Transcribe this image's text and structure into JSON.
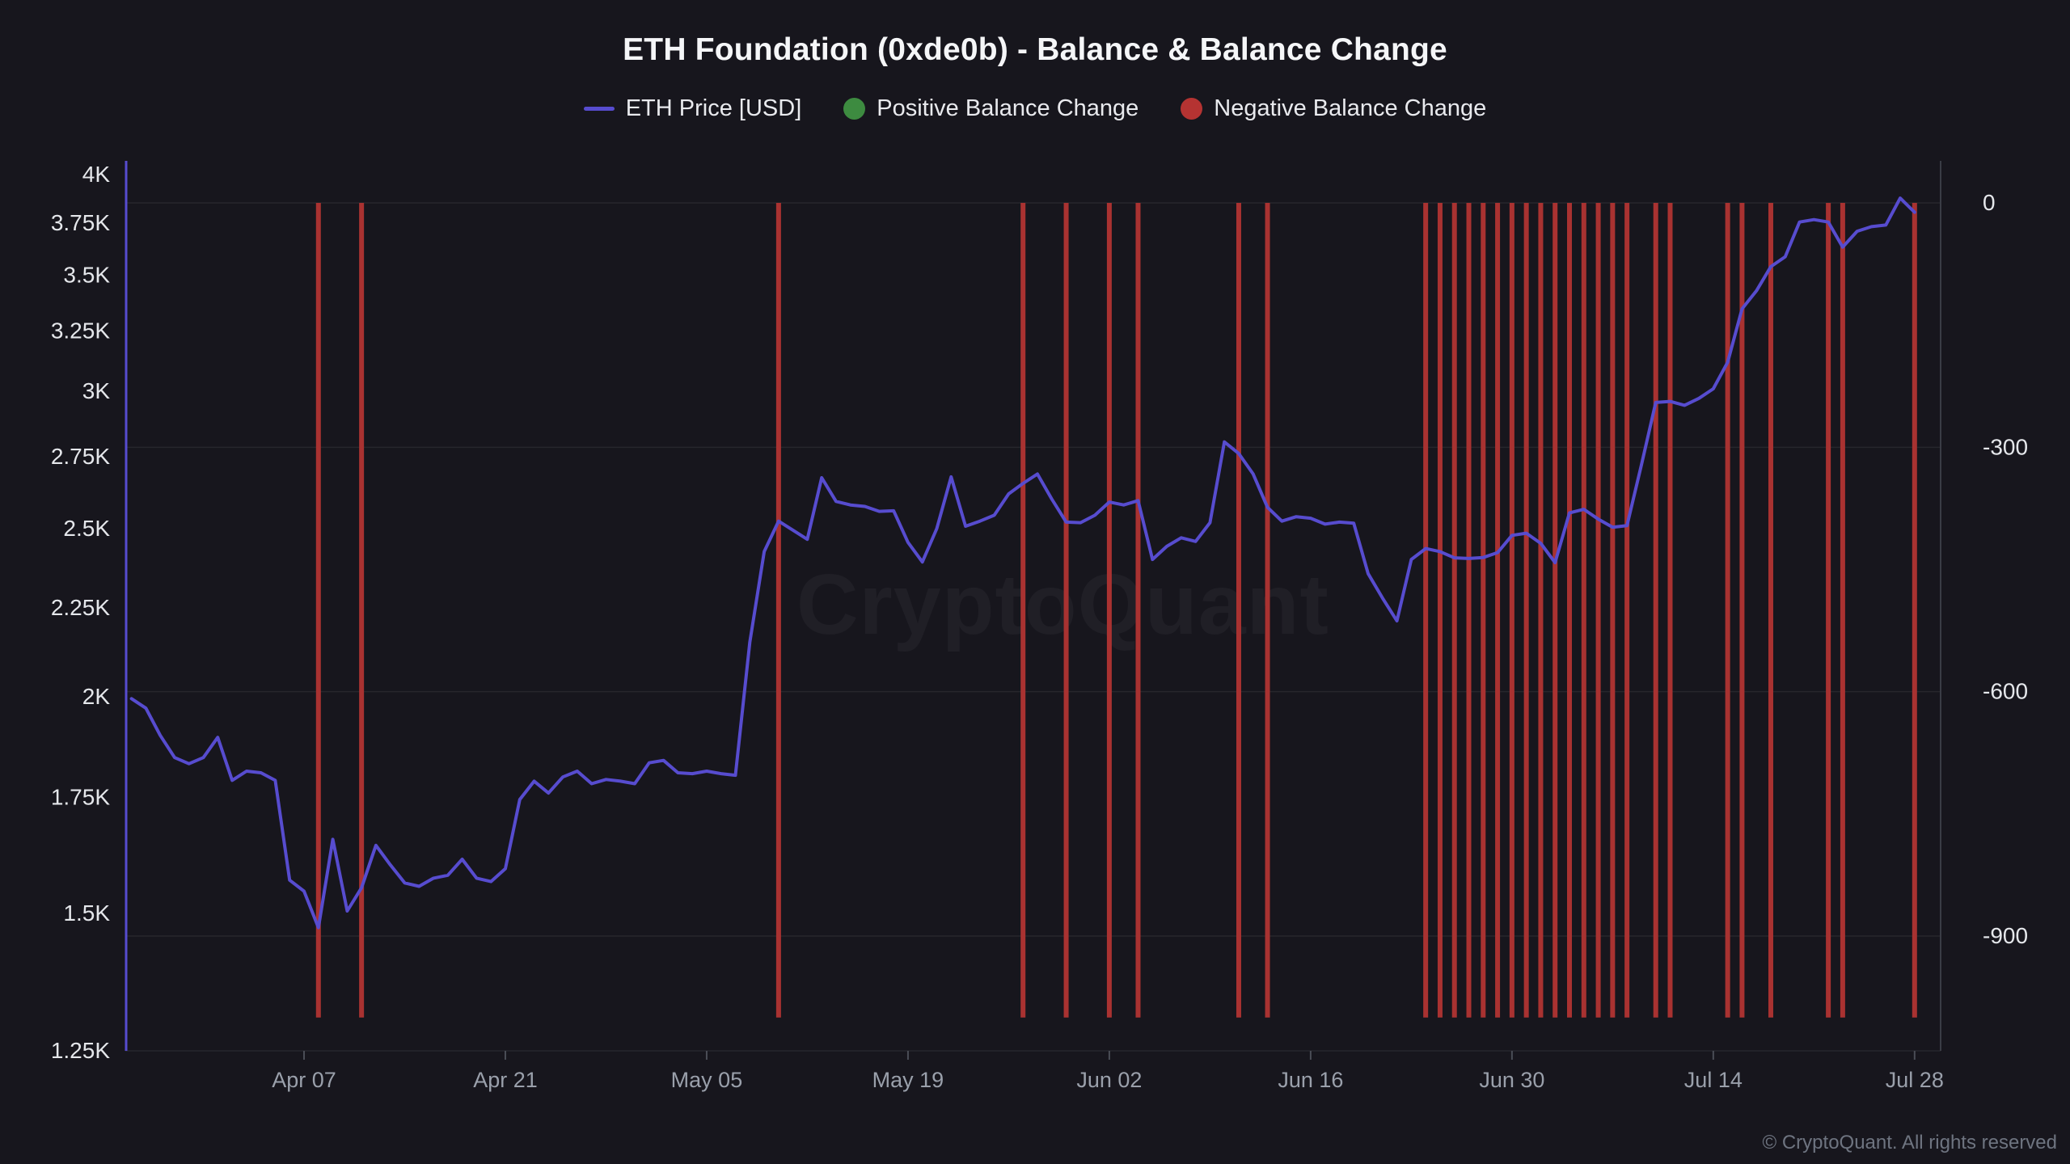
{
  "header": {
    "title": "ETH Foundation (0xde0b) - Balance & Balance Change"
  },
  "legend": {
    "items": [
      {
        "label": "ETH Price [USD]",
        "marker": "line",
        "color": "#574ccf"
      },
      {
        "label": "Positive Balance Change",
        "marker": "dot",
        "color": "#3d8b40"
      },
      {
        "label": "Negative Balance Change",
        "marker": "dot",
        "color": "#b53332"
      }
    ]
  },
  "watermark": "CryptoQuant",
  "attribution": "© CryptoQuant. All rights reserved",
  "colors": {
    "background": "#17161d",
    "price_line": "#574ccf",
    "negative_bar": "#a93231",
    "gridline": "rgba(255,255,255,0.07)",
    "left_axis_line": "#574ccf",
    "right_axis_line": "#3a3c45",
    "y_label": "#e5e7eb",
    "x_label": "#9aa0ab",
    "tick_mark": "#4a4d56"
  },
  "chart_data": {
    "type": "mixed",
    "title": "ETH Foundation (0xde0b) - Balance & Balance Change",
    "grid": "horizontal",
    "x_axis": {
      "ticks": [
        "Apr 07",
        "Apr 21",
        "May 05",
        "May 19",
        "Jun 02",
        "Jun 16",
        "Jun 30",
        "Jul 14",
        "Jul 28"
      ],
      "range": [
        "Mar 26",
        "Jul 28"
      ]
    },
    "left_axis": {
      "scale": "log",
      "title": "ETH Price [USD]",
      "ticks": [
        "4K",
        "3.75K",
        "3.5K",
        "3.25K",
        "3K",
        "2.75K",
        "2.5K",
        "2.25K",
        "2K",
        "1.75K",
        "1.5K",
        "1.25K"
      ],
      "tick_values": [
        4000,
        3750,
        3500,
        3250,
        3000,
        2750,
        2500,
        2250,
        2000,
        1750,
        1500,
        1250
      ],
      "range": [
        1250,
        4000
      ]
    },
    "right_axis": {
      "scale": "linear",
      "title": "Balance Change",
      "ticks": [
        "0",
        "-300",
        "-600",
        "-900"
      ],
      "tick_values": [
        0,
        -300,
        -600,
        -900
      ],
      "range": [
        -1000,
        0
      ]
    },
    "dates": [
      "Mar 26",
      "Mar 27",
      "Mar 28",
      "Mar 29",
      "Mar 30",
      "Mar 31",
      "Apr 01",
      "Apr 02",
      "Apr 03",
      "Apr 04",
      "Apr 05",
      "Apr 06",
      "Apr 07",
      "Apr 08",
      "Apr 09",
      "Apr 10",
      "Apr 11",
      "Apr 12",
      "Apr 13",
      "Apr 14",
      "Apr 15",
      "Apr 16",
      "Apr 17",
      "Apr 18",
      "Apr 19",
      "Apr 20",
      "Apr 21",
      "Apr 22",
      "Apr 23",
      "Apr 24",
      "Apr 25",
      "Apr 26",
      "Apr 27",
      "Apr 28",
      "Apr 29",
      "Apr 30",
      "May 01",
      "May 02",
      "May 03",
      "May 04",
      "May 05",
      "May 06",
      "May 07",
      "May 08",
      "May 09",
      "May 10",
      "May 11",
      "May 12",
      "May 13",
      "May 14",
      "May 15",
      "May 16",
      "May 17",
      "May 18",
      "May 19",
      "May 20",
      "May 21",
      "May 22",
      "May 23",
      "May 24",
      "May 25",
      "May 26",
      "May 27",
      "May 28",
      "May 29",
      "May 30",
      "May 31",
      "Jun 01",
      "Jun 02",
      "Jun 03",
      "Jun 04",
      "Jun 05",
      "Jun 06",
      "Jun 07",
      "Jun 08",
      "Jun 09",
      "Jun 10",
      "Jun 11",
      "Jun 12",
      "Jun 13",
      "Jun 14",
      "Jun 15",
      "Jun 16",
      "Jun 17",
      "Jun 18",
      "Jun 19",
      "Jun 20",
      "Jun 21",
      "Jun 22",
      "Jun 23",
      "Jun 24",
      "Jun 25",
      "Jun 26",
      "Jun 27",
      "Jun 28",
      "Jun 29",
      "Jun 30",
      "Jul 01",
      "Jul 02",
      "Jul 03",
      "Jul 04",
      "Jul 05",
      "Jul 06",
      "Jul 07",
      "Jul 08",
      "Jul 09",
      "Jul 10",
      "Jul 11",
      "Jul 12",
      "Jul 13",
      "Jul 14",
      "Jul 15",
      "Jul 16",
      "Jul 17",
      "Jul 18",
      "Jul 19",
      "Jul 20",
      "Jul 21",
      "Jul 22",
      "Jul 23",
      "Jul 24",
      "Jul 25",
      "Jul 26",
      "Jul 27",
      "Jul 28"
    ],
    "series": [
      {
        "name": "ETH Price [USD]",
        "type": "line",
        "axis": "left",
        "color": "#574ccf",
        "values": [
          1995,
          1970,
          1900,
          1845,
          1830,
          1845,
          1895,
          1790,
          1812,
          1808,
          1790,
          1568,
          1545,
          1472,
          1655,
          1505,
          1552,
          1642,
          1600,
          1562,
          1555,
          1572,
          1578,
          1612,
          1572,
          1565,
          1592,
          1745,
          1788,
          1760,
          1798,
          1812,
          1782,
          1792,
          1788,
          1782,
          1832,
          1838,
          1808,
          1806,
          1812,
          1806,
          1802,
          2150,
          2425,
          2525,
          2495,
          2465,
          2675,
          2592,
          2580,
          2575,
          2558,
          2560,
          2455,
          2392,
          2500,
          2678,
          2508,
          2525,
          2545,
          2618,
          2655,
          2688,
          2600,
          2522,
          2520,
          2545,
          2590,
          2580,
          2595,
          2400,
          2442,
          2470,
          2458,
          2520,
          2805,
          2762,
          2688,
          2572,
          2525,
          2540,
          2535,
          2515,
          2522,
          2518,
          2355,
          2280,
          2212,
          2400,
          2435,
          2425,
          2405,
          2403,
          2406,
          2422,
          2478,
          2485,
          2452,
          2390,
          2553,
          2565,
          2532,
          2505,
          2510,
          2720,
          2956,
          2960,
          2945,
          2972,
          3010,
          3118,
          3347,
          3428,
          3540,
          3587,
          3756,
          3768,
          3756,
          3633,
          3710,
          3733,
          3741,
          3877,
          3805
        ]
      },
      {
        "name": "Positive Balance Change",
        "type": "bar",
        "axis": "right",
        "color": "#3d8b40",
        "points": []
      },
      {
        "name": "Negative Balance Change",
        "type": "bar",
        "axis": "right",
        "color": "#a93231",
        "points": [
          {
            "date": "Apr 08",
            "value": -1000
          },
          {
            "date": "Apr 11",
            "value": -1000
          },
          {
            "date": "May 10",
            "value": -1000
          },
          {
            "date": "May 27",
            "value": -1000
          },
          {
            "date": "May 30",
            "value": -1000
          },
          {
            "date": "Jun 02",
            "value": -1000
          },
          {
            "date": "Jun 04",
            "value": -1000
          },
          {
            "date": "Jun 11",
            "value": -1000
          },
          {
            "date": "Jun 13",
            "value": -1000
          },
          {
            "date": "Jun 24",
            "value": -1000
          },
          {
            "date": "Jun 25",
            "value": -1000
          },
          {
            "date": "Jun 26",
            "value": -1000
          },
          {
            "date": "Jun 27",
            "value": -1000
          },
          {
            "date": "Jun 28",
            "value": -1000
          },
          {
            "date": "Jun 29",
            "value": -1000
          },
          {
            "date": "Jun 30",
            "value": -1000
          },
          {
            "date": "Jul 01",
            "value": -1000
          },
          {
            "date": "Jul 02",
            "value": -1000
          },
          {
            "date": "Jul 03",
            "value": -1000
          },
          {
            "date": "Jul 04",
            "value": -1000
          },
          {
            "date": "Jul 05",
            "value": -1000
          },
          {
            "date": "Jul 06",
            "value": -1000
          },
          {
            "date": "Jul 07",
            "value": -1000
          },
          {
            "date": "Jul 08",
            "value": -1000
          },
          {
            "date": "Jul 10",
            "value": -1000
          },
          {
            "date": "Jul 11",
            "value": -1000
          },
          {
            "date": "Jul 15",
            "value": -1000
          },
          {
            "date": "Jul 16",
            "value": -1000
          },
          {
            "date": "Jul 18",
            "value": -1000
          },
          {
            "date": "Jul 22",
            "value": -1000
          },
          {
            "date": "Jul 23",
            "value": -1000
          },
          {
            "date": "Jul 28",
            "value": -1000
          }
        ]
      }
    ]
  }
}
